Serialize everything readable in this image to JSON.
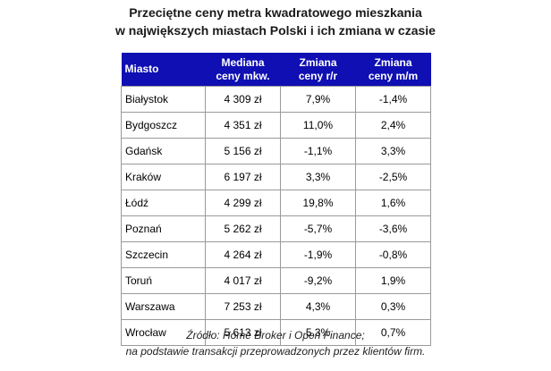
{
  "title": {
    "line1": "Przeciętne ceny metra kwadratowego mieszkania",
    "line2": "w największych miastach Polski i ich zmiana w czasie"
  },
  "table": {
    "header_color": "#0f0fb4",
    "headers": {
      "city": "Miasto",
      "price_line1": "Mediana",
      "price_line2": "ceny mkw.",
      "yy_line1": "Zmiana",
      "yy_line2": "ceny r/r",
      "mm_line1": "Zmiana",
      "mm_line2": "ceny m/m"
    },
    "rows": [
      {
        "city": "Białystok",
        "price": "4 309 zł",
        "yy": "7,9%",
        "mm": "-1,4%"
      },
      {
        "city": "Bydgoszcz",
        "price": "4 351 zł",
        "yy": "11,0%",
        "mm": "2,4%"
      },
      {
        "city": "Gdańsk",
        "price": "5 156 zł",
        "yy": "-1,1%",
        "mm": "3,3%"
      },
      {
        "city": "Kraków",
        "price": "6 197 zł",
        "yy": "3,3%",
        "mm": "-2,5%"
      },
      {
        "city": "Łódź",
        "price": "4 299 zł",
        "yy": "19,8%",
        "mm": "1,6%"
      },
      {
        "city": "Poznań",
        "price": "5 262 zł",
        "yy": "-5,7%",
        "mm": "-3,6%"
      },
      {
        "city": "Szczecin",
        "price": "4 264 zł",
        "yy": "-1,9%",
        "mm": "-0,8%"
      },
      {
        "city": "Toruń",
        "price": "4 017 zł",
        "yy": "-9,2%",
        "mm": "1,9%"
      },
      {
        "city": "Warszawa",
        "price": "7 253 zł",
        "yy": "4,3%",
        "mm": "0,3%"
      },
      {
        "city": "Wrocław",
        "price": "5 613 zł",
        "yy": "5,3%",
        "mm": "0,7%"
      }
    ]
  },
  "source": {
    "line1": "Źródło: Home Broker i Open Finance;",
    "line2": "na podstawie transakcji przeprowadzonych przez klientów firm."
  }
}
